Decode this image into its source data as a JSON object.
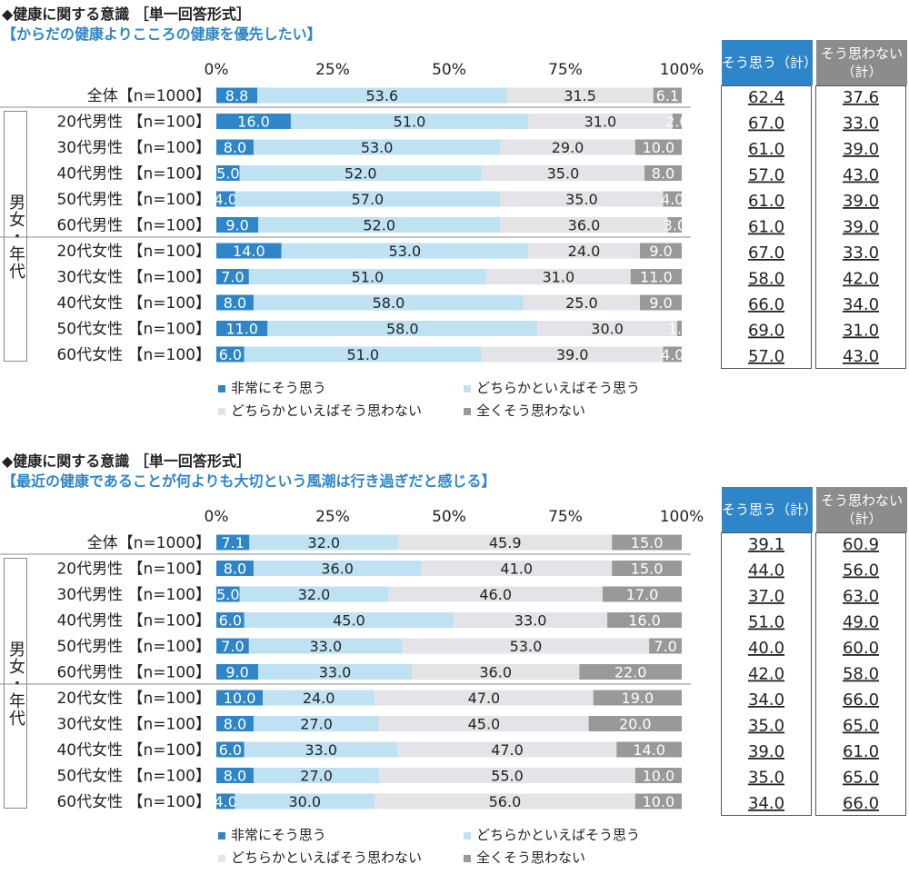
{
  "colors": {
    "very": "#2e86c8",
    "somewhat": "#bfe2f3",
    "somewhat_not": "#e4e4e8",
    "not_at_all": "#999999",
    "head_agree": "#2e86c8",
    "head_disagree": "#8c8c8c"
  },
  "legend": [
    "非常にそう思う",
    "どちらかといえばそう思う",
    "どちらかといえばそう思わない",
    "全くそう思わない"
  ],
  "summary_headers": {
    "agree": "そう思う（計）",
    "disagree": "そう思わない（計）"
  },
  "group_label": "男女・年代",
  "ticks": [
    "0%",
    "25%",
    "50%",
    "75%",
    "100%"
  ],
  "chart_data": [
    {
      "type": "bar",
      "title": "◆健康に関する意識 ［単一回答形式］",
      "subtitle": "【からだの健康よりこころの健康を優先したい】",
      "categories": [
        "全体【n=1000】",
        "20代男性 【n=100】",
        "30代男性 【n=100】",
        "40代男性 【n=100】",
        "50代男性 【n=100】",
        "60代男性 【n=100】",
        "20代女性 【n=100】",
        "30代女性 【n=100】",
        "40代女性 【n=100】",
        "50代女性 【n=100】",
        "60代女性 【n=100】"
      ],
      "series": [
        {
          "name": "非常にそう思う",
          "values": [
            8.8,
            16.0,
            8.0,
            5.0,
            4.0,
            9.0,
            14.0,
            7.0,
            8.0,
            11.0,
            6.0
          ]
        },
        {
          "name": "どちらかといえばそう思う",
          "values": [
            53.6,
            51.0,
            53.0,
            52.0,
            57.0,
            52.0,
            53.0,
            51.0,
            58.0,
            58.0,
            51.0
          ]
        },
        {
          "name": "どちらかといえばそう思わない",
          "values": [
            31.5,
            31.0,
            29.0,
            35.0,
            35.0,
            36.0,
            24.0,
            31.0,
            25.0,
            30.0,
            39.0
          ]
        },
        {
          "name": "全くそう思わない",
          "values": [
            6.1,
            2.0,
            10.0,
            8.0,
            4.0,
            3.0,
            9.0,
            11.0,
            9.0,
            1.0,
            4.0
          ]
        }
      ],
      "agree_total": [
        "62.4",
        "67.0",
        "61.0",
        "57.0",
        "61.0",
        "61.0",
        "67.0",
        "58.0",
        "66.0",
        "69.0",
        "57.0"
      ],
      "disagree_total": [
        "37.6",
        "33.0",
        "39.0",
        "43.0",
        "39.0",
        "39.0",
        "33.0",
        "42.0",
        "34.0",
        "31.0",
        "43.0"
      ],
      "xlim": [
        0,
        100
      ]
    },
    {
      "type": "bar",
      "title": "◆健康に関する意識 ［単一回答形式］",
      "subtitle": "【最近の健康であることが何よりも大切という風潮は行き過ぎだと感じる】",
      "categories": [
        "全体【n=1000】",
        "20代男性 【n=100】",
        "30代男性 【n=100】",
        "40代男性 【n=100】",
        "50代男性 【n=100】",
        "60代男性 【n=100】",
        "20代女性 【n=100】",
        "30代女性 【n=100】",
        "40代女性 【n=100】",
        "50代女性 【n=100】",
        "60代女性 【n=100】"
      ],
      "series": [
        {
          "name": "非常にそう思う",
          "values": [
            7.1,
            8.0,
            5.0,
            6.0,
            7.0,
            9.0,
            10.0,
            8.0,
            6.0,
            8.0,
            4.0
          ]
        },
        {
          "name": "どちらかといえばそう思う",
          "values": [
            32.0,
            36.0,
            32.0,
            45.0,
            33.0,
            33.0,
            24.0,
            27.0,
            33.0,
            27.0,
            30.0
          ]
        },
        {
          "name": "どちらかといえばそう思わない",
          "values": [
            45.9,
            41.0,
            46.0,
            33.0,
            53.0,
            36.0,
            47.0,
            45.0,
            47.0,
            55.0,
            56.0
          ]
        },
        {
          "name": "全くそう思わない",
          "values": [
            15.0,
            15.0,
            17.0,
            16.0,
            7.0,
            22.0,
            19.0,
            20.0,
            14.0,
            10.0,
            10.0
          ]
        }
      ],
      "agree_total": [
        "39.1",
        "44.0",
        "37.0",
        "51.0",
        "40.0",
        "42.0",
        "34.0",
        "35.0",
        "39.0",
        "35.0",
        "34.0"
      ],
      "disagree_total": [
        "60.9",
        "56.0",
        "63.0",
        "49.0",
        "60.0",
        "58.0",
        "66.0",
        "65.0",
        "61.0",
        "65.0",
        "66.0"
      ],
      "xlim": [
        0,
        100
      ]
    }
  ]
}
